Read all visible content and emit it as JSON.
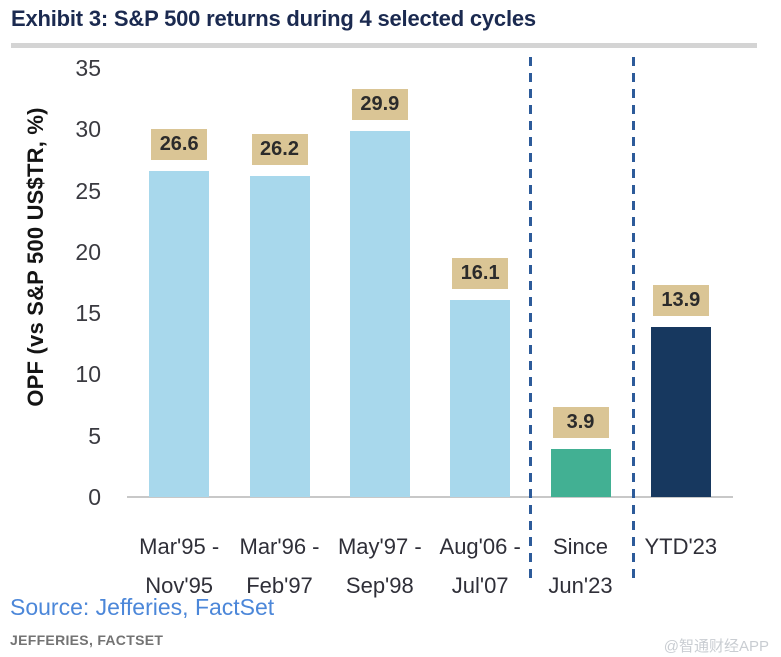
{
  "page": {
    "title": "Exhibit 3: S&P 500 returns during 4 selected cycles"
  },
  "chart_data": {
    "type": "bar",
    "title": "Exhibit 3: S&P 500 returns during 4 selected cycles",
    "ylabel": "OPF (vs S&P 500 US$TR, %)",
    "xlabel": "",
    "ylim": [
      0,
      35
    ],
    "yticks": [
      35,
      30,
      25,
      20,
      15,
      10,
      5,
      0
    ],
    "grid": false,
    "legend_position": "none",
    "categories": [
      "Mar'95 - Nov'95",
      "Mar'96 - Feb'97",
      "May'97 - Sep'98",
      "Aug'06 - Jul'07",
      "Since Jun'23",
      "YTD'23"
    ],
    "category_label_lines": [
      [
        "Mar'95 -",
        "Nov'95"
      ],
      [
        "Mar'96 -",
        "Feb'97"
      ],
      [
        "May'97 -",
        "Sep'98"
      ],
      [
        "Aug'06 -",
        "Jul'07"
      ],
      [
        "Since",
        "Jun'23"
      ],
      [
        "YTD'23"
      ]
    ],
    "values": [
      26.6,
      26.2,
      29.9,
      16.1,
      3.9,
      13.9
    ],
    "value_labels": [
      "26.6",
      "26.2",
      "29.9",
      "16.1",
      "3.9",
      "13.9"
    ],
    "bar_colors": [
      "#a8d8ec",
      "#a8d8ec",
      "#a8d8ec",
      "#a8d8ec",
      "#42b093",
      "#17385f"
    ],
    "value_label_bg": "#dac595",
    "value_label_text_color": "#2b2b2b",
    "separators_after_category_index": [
      3,
      4
    ],
    "separator_color": "#2d5b9a",
    "axis_line_color": "#c8c8c8"
  },
  "source": {
    "text": "Source: Jefferies, FactSet",
    "color": "#4c87d9"
  },
  "footer": {
    "text": "JEFFERIES, FACTSET"
  },
  "watermark": {
    "text": "@智通财经APP"
  }
}
